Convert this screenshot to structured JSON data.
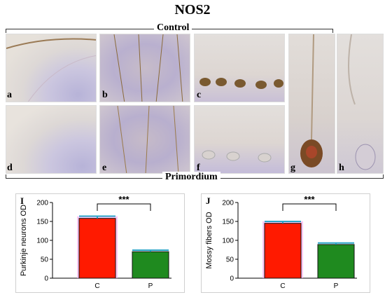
{
  "figure": {
    "title": "NOS2",
    "group_top": "Control",
    "group_bottom": "Primordium",
    "panels": [
      "a",
      "b",
      "c",
      "d",
      "e",
      "f",
      "g",
      "h"
    ]
  },
  "colors": {
    "control_bar": "#ff1a00",
    "primordium_bar": "#1f8a1f",
    "error_bar": "#2aa5c8",
    "bar_glow": "#f7a8ee"
  },
  "chart_data": [
    {
      "panel_label": "I",
      "type": "bar",
      "categories": [
        "C",
        "P"
      ],
      "values": [
        158,
        70
      ],
      "errors": [
        6,
        4
      ],
      "ylabel": "Purkinje neurons OD",
      "ylim": [
        0,
        200
      ],
      "yticks": [
        "0",
        "50",
        "100",
        "150",
        "200"
      ],
      "significance": "***"
    },
    {
      "panel_label": "J",
      "type": "bar",
      "categories": [
        "C",
        "P"
      ],
      "values": [
        145,
        89
      ],
      "errors": [
        5,
        4
      ],
      "ylabel": "Mossy fibers OD",
      "ylim": [
        0,
        200
      ],
      "yticks": [
        "0",
        "50",
        "100",
        "150",
        "200"
      ],
      "significance": "***"
    }
  ]
}
